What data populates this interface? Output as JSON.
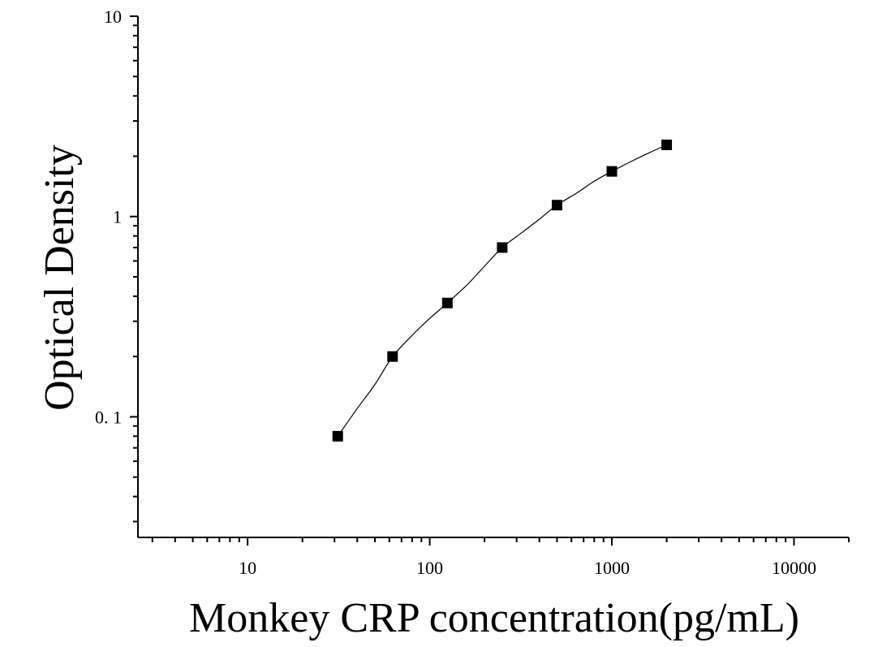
{
  "chart_data": {
    "type": "scatter",
    "title": "",
    "xlabel": "Monkey CRP concentration(pg/mL)",
    "ylabel": "Optical Density",
    "xscale": "log",
    "yscale": "log",
    "xlim": [
      2.5,
      20000
    ],
    "ylim": [
      0.025,
      10
    ],
    "x_tick_labels": [
      "10",
      "100",
      "1000",
      "10000"
    ],
    "x_tick_values": [
      10,
      100,
      1000,
      10000
    ],
    "y_tick_labels": [
      "0. 1",
      "1",
      "10"
    ],
    "y_tick_values": [
      0.1,
      1,
      10
    ],
    "grid": false,
    "legend": "none",
    "series": [
      {
        "x": [
          31.25,
          62.5,
          125,
          250,
          500,
          1000,
          2000
        ],
        "y": [
          0.08,
          0.2,
          0.37,
          0.7,
          1.14,
          1.68,
          2.28
        ],
        "marker": "square",
        "color": "#000000"
      }
    ],
    "fit_curve": {
      "x": [
        31.25,
        40,
        50,
        62.5,
        80,
        100,
        125,
        160,
        200,
        250,
        320,
        400,
        500,
        650,
        800,
        1000,
        1300,
        1600,
        2000
      ],
      "y": [
        0.08,
        0.11,
        0.145,
        0.2,
        0.255,
        0.31,
        0.37,
        0.455,
        0.565,
        0.7,
        0.83,
        0.97,
        1.14,
        1.32,
        1.5,
        1.68,
        1.9,
        2.08,
        2.28
      ],
      "color": "#000000"
    }
  }
}
